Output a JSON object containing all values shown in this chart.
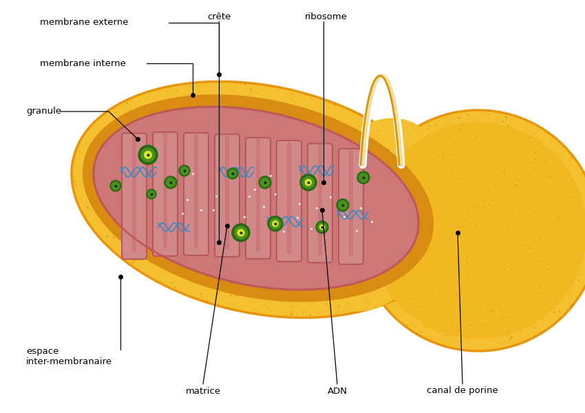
{
  "bg_color": "#ffffff",
  "outer_yellow": "#F5C030",
  "outer_orange_edge": "#E8950A",
  "outer_yellow_light": "#FADA60",
  "intermembrane_orange": "#E89820",
  "inner_membrane_pink": "#E09090",
  "inner_membrane_edge": "#C05858",
  "matrix_pink": "#CC7878",
  "crista_fill": "#D08888",
  "crista_edge": "#B85858",
  "crista_inner_fill": "#C07070",
  "adn_blue": "#4480C0",
  "granule_outer": "#2A6810",
  "granule_mid": "#4A9020",
  "granule_yellow": "#D8E428",
  "dot_dark": "#B07018",
  "dot_light": "#D4A030",
  "white_dot": "#FFFFFF",
  "label_fs": 9.5,
  "labels": {
    "membrane_externe": "membrane externe",
    "membrane_interne": "membrane interne",
    "granule": "granule",
    "crete": "crête",
    "ribosome": "ribosome",
    "espace_inter": "espace\ninter-membranaire",
    "matrice": "matrice",
    "adn": "ADN",
    "canal_de_porine": "canal de porine"
  }
}
